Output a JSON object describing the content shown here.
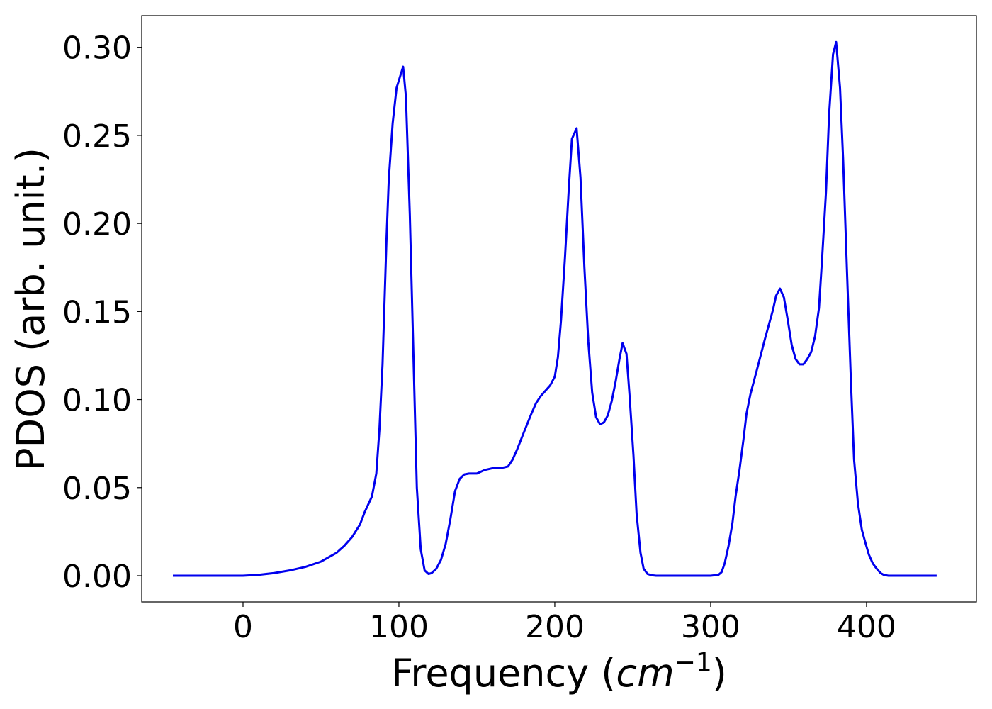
{
  "chart_data": {
    "type": "line",
    "xlabel": "Frequency (cm−1)",
    "ylabel": "PDOS (arb. unit.)",
    "color": "#0000ee",
    "xlim": [
      -65,
      470.5
    ],
    "ylim": [
      -0.0149,
      0.318
    ],
    "xticks": [
      0,
      100,
      200,
      300,
      400
    ],
    "yticks": [
      {
        "value": 0,
        "label": "0.00"
      },
      {
        "value": 0.05,
        "label": "0.05"
      },
      {
        "value": 0.1,
        "label": "0.10"
      },
      {
        "value": 0.15,
        "label": "0.15"
      },
      {
        "value": 0.2,
        "label": "0.20"
      },
      {
        "value": 0.25,
        "label": "0.25"
      },
      {
        "value": 0.3,
        "label": "0.30"
      }
    ],
    "x": [
      -45,
      0,
      10,
      20,
      30,
      40,
      50,
      60,
      65,
      70,
      75,
      78,
      82.7,
      85.5,
      87.5,
      89.5,
      92,
      93.5,
      96,
      98.5,
      102.7,
      104.5,
      107,
      111.5,
      114,
      116.5,
      119,
      121,
      124,
      127,
      130,
      133,
      136,
      139,
      142,
      145,
      150,
      155,
      160,
      165,
      170,
      173,
      176,
      180,
      185,
      188,
      191,
      194,
      197,
      200,
      202,
      204,
      206.5,
      209,
      211,
      214,
      216.5,
      219,
      221.5,
      224,
      226.5,
      229,
      231.5,
      234,
      236.5,
      239,
      241.5,
      243.5,
      246,
      248,
      250.5,
      252.5,
      255,
      257,
      259.5,
      262,
      265,
      300,
      305,
      307,
      309,
      311.5,
      314,
      316,
      318.5,
      321,
      323,
      325.5,
      330,
      335,
      340,
      342,
      344.5,
      347,
      349.5,
      352,
      354.5,
      357,
      359.5,
      362,
      364.5,
      367,
      369.5,
      371.5,
      374,
      376,
      378.5,
      380.5,
      383,
      385,
      387.5,
      390,
      392,
      394.5,
      397,
      399.5,
      401.5,
      404,
      406.5,
      409,
      411,
      414,
      445
    ],
    "values": [
      0,
      0,
      0.0005,
      0.0015,
      0.003,
      0.005,
      0.008,
      0.013,
      0.017,
      0.022,
      0.029,
      0.036,
      0.045,
      0.058,
      0.083,
      0.12,
      0.19,
      0.225,
      0.257,
      0.277,
      0.289,
      0.272,
      0.205,
      0.05,
      0.015,
      0.003,
      0.001,
      0.0015,
      0.004,
      0.009,
      0.018,
      0.032,
      0.048,
      0.055,
      0.0575,
      0.058,
      0.058,
      0.06,
      0.061,
      0.061,
      0.062,
      0.066,
      0.072,
      0.081,
      0.092,
      0.098,
      0.102,
      0.105,
      0.108,
      0.113,
      0.124,
      0.145,
      0.18,
      0.22,
      0.248,
      0.254,
      0.226,
      0.175,
      0.133,
      0.104,
      0.09,
      0.086,
      0.087,
      0.091,
      0.099,
      0.11,
      0.123,
      0.132,
      0.126,
      0.102,
      0.068,
      0.035,
      0.013,
      0.004,
      0.001,
      0.0003,
      0,
      0,
      0.0005,
      0.002,
      0.007,
      0.017,
      0.03,
      0.045,
      0.06,
      0.077,
      0.092,
      0.103,
      0.118,
      0.135,
      0.151,
      0.159,
      0.163,
      0.158,
      0.145,
      0.131,
      0.123,
      0.12,
      0.12,
      0.123,
      0.127,
      0.136,
      0.152,
      0.18,
      0.218,
      0.262,
      0.296,
      0.303,
      0.277,
      0.236,
      0.172,
      0.11,
      0.066,
      0.041,
      0.026,
      0.018,
      0.012,
      0.007,
      0.004,
      0.0015,
      0.0005,
      0,
      0
    ]
  }
}
